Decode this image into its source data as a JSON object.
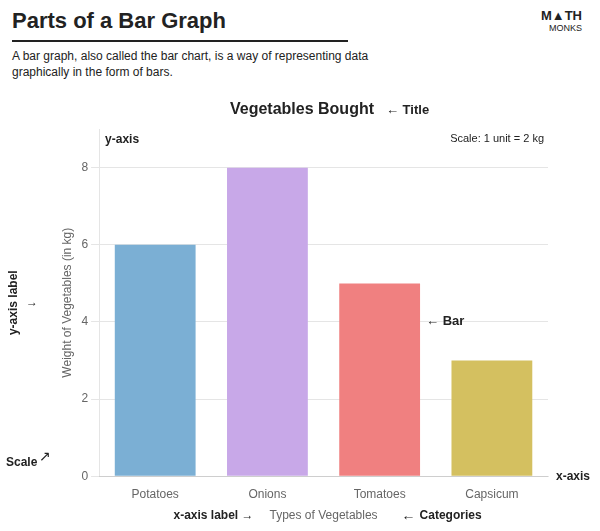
{
  "page_title": "Parts of a Bar Graph",
  "page_subtitle": "A bar graph, also called the bar chart, is a way of representing data\ngraphically in the form of bars.",
  "logo": [
    "M▲TH",
    "MONKS"
  ],
  "chart_data": {
    "type": "bar",
    "title": "Vegetables Bought",
    "categories": [
      "Potatoes",
      "Onions",
      "Tomatoes",
      "Capsicum"
    ],
    "values": [
      6,
      8,
      5,
      3
    ],
    "colors": [
      "#7bafd4",
      "#c8a8e8",
      "#f08080",
      "#d4c060"
    ],
    "xlabel": "Types of Vegetables",
    "ylabel": "Weight of Vegetables (in kg)",
    "ylim": [
      0,
      9
    ],
    "yticks": [
      0,
      2,
      4,
      6,
      8
    ],
    "grid": true,
    "annotations": {
      "title": "← Title",
      "scale_text": "Scale: 1 unit = 2 kg",
      "y_axis": "y-axis",
      "y_axis_label": "y-axis label",
      "y_axis_label_arrow": "→",
      "x_axis": "x-axis",
      "bar": "← Bar",
      "scale": "Scale",
      "scale_arrow": "↗",
      "x_axis_label": "x-axis label →",
      "categories_arrow": "←",
      "categories": "Categories"
    }
  }
}
